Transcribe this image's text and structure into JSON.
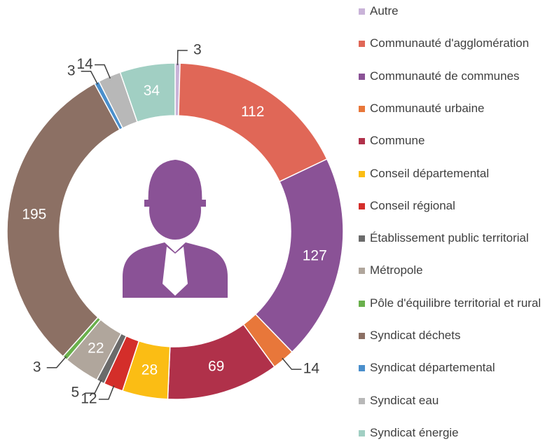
{
  "chart_data": {
    "type": "donut",
    "categories": [
      "Autre",
      "Communauté d'agglomération",
      "Communauté de communes",
      "Communauté urbaine",
      "Commune",
      "Conseil départemental",
      "Conseil régional",
      "Établissement public territorial",
      "Métropole",
      "Pôle d'équilibre territorial et rural",
      "Syndicat déchets",
      "Syndicat départemental",
      "Syndicat eau",
      "Syndicat énergie"
    ],
    "values": [
      3,
      112,
      127,
      14,
      69,
      28,
      12,
      5,
      22,
      3,
      195,
      3,
      14,
      34
    ],
    "colors": [
      "#c9b3d8",
      "#e06757",
      "#8a5296",
      "#e8773a",
      "#b0314a",
      "#fbbd14",
      "#d42e2a",
      "#6b6b6b",
      "#b0a69c",
      "#6ab04c",
      "#8c7064",
      "#4a8fcc",
      "#b8b8b8",
      "#a1cfc3"
    ]
  }
}
